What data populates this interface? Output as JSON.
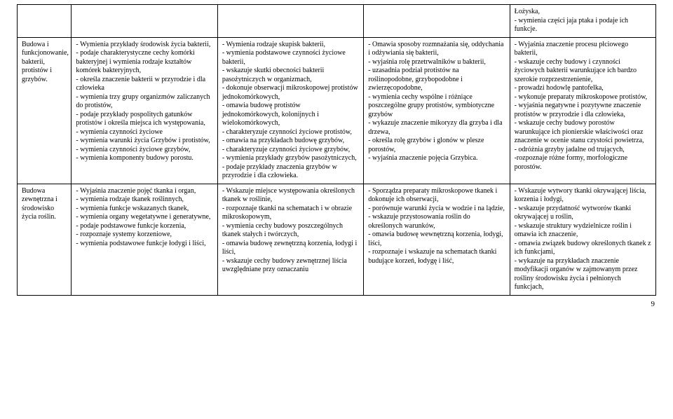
{
  "row0": {
    "c4": "Łożyska,\n-  wymienia części jaja ptaka i podaje ich funkcje."
  },
  "row1": {
    "label": "Budowa i funkcjonowanie, bakterii, protistów i grzybów.",
    "c1": "- Wymienia przykłady środowisk życia bakterii,\n-  podaje charakterystyczne cechy komórki bakteryjnej i wymienia rodzaje kształtów komórek bakteryjnych,\n-  określa znaczenie bakterii w przyrodzie i dla człowieka\n-  wymienia trzy grupy organizmów zaliczanych do protistów,\n-  podaje przykłady pospolitych gatunków protistów i określa miejsca ich występowania,\n-  wymienia czynności życiowe\n-  wymienia warunki życia Grzybów i protistów,\n-  wymienia czynności życiowe grzybów,\n-  wymienia komponenty budowy porostu.",
    "c2": "- Wymienia rodzaje skupisk bakterii,\n-  wymienia podstawowe czynności życiowe bakterii,\n-  wskazuje skutki obecności bakterii pasożytniczych w organizmach,\n-  dokonuje obserwacji mikroskopowej protistów jednokomórkowych,\n-  omawia budowę protistów jednokomórkowych, kolonijnych i wielokomórkowych,\n-  charakteryzuje czynności życiowe protistów,\n-  omawia na przykładach budowę grzybów,\n-  charakteryzuje czynności życiowe grzybów,\n-  wymienia przykłady grzybów pasożytniczych,\n-  podaje przykłady znaczenia grzybów w przyrodzie i dla człowieka.",
    "c3": "- Omawia sposoby rozmnażania się, oddychania i odżywiania się bakterii,\n-  wyjaśnia rolę przetrwalników u bakterii,\n-  uzasadnia podział protistów na roślinopodobne, grzybopodobne i zwierzęcopodobne,\n-  wymienia cechy wspólne i różniące poszczególne grupy protistów, symbiotyczne grzybów\n-  wykazuje znaczenie mikoryzy dla grzyba i dla drzewa,\n-  określa rolę grzybów i glonów w plesze porostów,\n-  wyjaśnia znaczenie pojęcia Grzybica.",
    "c4": "- Wyjaśnia znaczenie procesu płciowego bakterii,\n-  wskazuje cechy budowy i czynności życiowych bakterii warunkujące ich bardzo szerokie rozprzestrzenienie,\n-  prowadzi hodowlę pantofelka,\n-  wykonuje preparaty mikroskopowe protistów,\n-  wyjaśnia negatywne i pozytywne znaczenie protistów w przyrodzie i dla człowieka,\n-  wskazuje cechy budowy porostów warunkujące ich pionierskie właściwości oraz znaczenie w ocenie stanu czystości powietrza,\n- odróżnia grzyby jadalne od trujących,\n-rozpoznaje różne formy, morfologiczne porostów."
  },
  "row2": {
    "label": "Budowa zewnętrzna i środowisko życia roślin.",
    "c1": "- Wyjaśnia znaczenie pojęć tkanka i organ,\n-  wymienia rodzaje tkanek roślinnych,\n-  wymienia funkcje wskazanych tkanek,\n-  wymienia organy wegetatywne i generatywne,\n-  podaje podstawowe funkcje korzenia,\n-  rozpoznaje systemy korzeniowe,\n-  wymienia podstawowe funkcje łodygi i liści,",
    "c2": "- Wskazuje miejsce występowania określonych tkanek w roślinie,\n-  rozpoznaje tkanki na schematach i w obrazie mikroskopowym,\n-  wymienia cechy budowy poszczególnych tkanek stałych i twórczych,\n-  omawia budowę zewnętrzną korzenia, łodygi i liści,\n-  wskazuje cechy budowy zewnętrznej liścia uwzględniane przy oznaczaniu",
    "c3": "- Sporządza preparaty mikroskopowe tkanek i dokonuje ich obserwacji,\n-  porównuje warunki życia w wodzie i na lądzie,\n-  wskazuje przystosowania roślin do określonych warunków,\n-  omawia budowę wewnętrzną korzenia, łodygi, liści,\n-  rozpoznaje i wskazuje na schematach tkanki budujące korzeń, łodygę i liść,",
    "c4": "- Wskazuje wytwory tkanki okrywającej liścia, korzenia i łodygi,\n-  wskazuje przydatność wytworów tkanki okrywającej u roślin,\n-  wskazuje struktury wydzielnicze roślin i omawia ich znaczenie,\n-  omawia związek budowy określonych tkanek z ich funkcjami,\n-  wykazuje na przykładach znaczenie modyfikacji organów w zajmowanym przez rośliny środowisku życia i pełnionych funkcjach,"
  },
  "pagenum": "9"
}
